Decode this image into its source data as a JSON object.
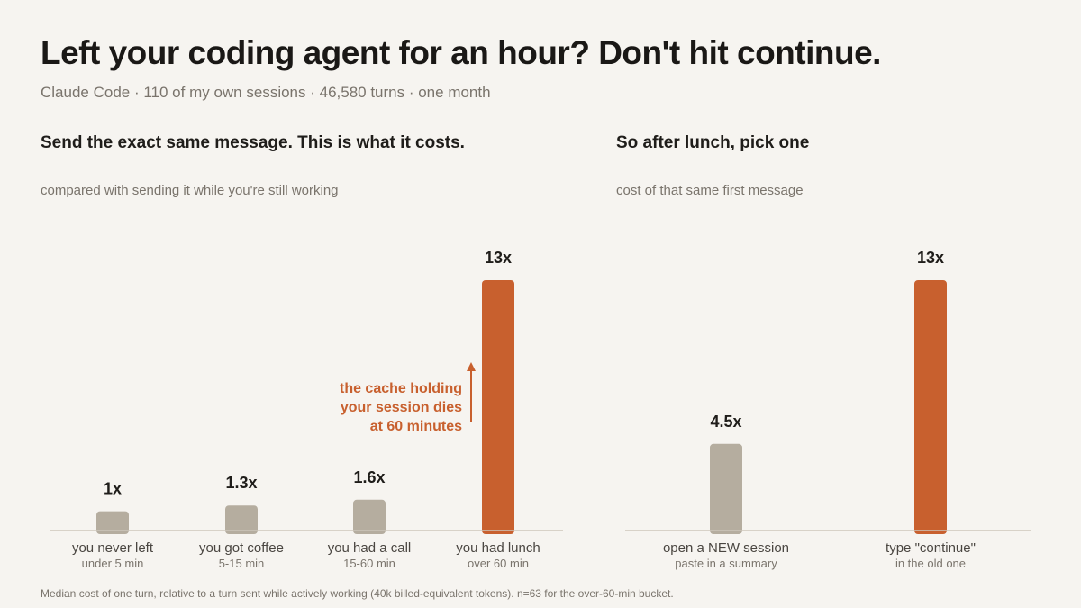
{
  "title": "Left your coding agent for an hour? Don't hit continue.",
  "subtitle": "Claude Code · 110 of my own sessions · 46,580 turns · one month",
  "footnote": "Median cost of one turn, relative to a turn sent while actively working (40k billed-equivalent tokens). n=63 for the over-60-min bucket.",
  "colors": {
    "neutral": "#b5ad9f",
    "accent": "#c8602e",
    "axis": "#cdc6bb",
    "label": "#4a4641",
    "sublabel": "#7a746c"
  },
  "chart_data": [
    {
      "type": "bar",
      "title": "Send the exact same message. This is what it costs.",
      "subtitle": "compared with sending it while you're still working",
      "categories": [
        "you never left",
        "you got coffee",
        "you had a call",
        "you had lunch"
      ],
      "sublabels": [
        "under 5 min",
        "5-15 min",
        "15-60 min",
        "over 60 min"
      ],
      "values": [
        1,
        1.3,
        1.6,
        13
      ],
      "value_labels": [
        "1x",
        "1.3x",
        "1.6x",
        "13x"
      ],
      "highlight": [
        false,
        false,
        false,
        true
      ],
      "ylim": [
        0,
        13
      ],
      "annotation": {
        "lines": [
          "the cache holding",
          "your session dies",
          "at 60 minutes"
        ]
      }
    },
    {
      "type": "bar",
      "title": "So after lunch, pick one",
      "subtitle": "cost of that same first message",
      "categories": [
        "open a NEW session",
        "type \"continue\""
      ],
      "sublabels": [
        "paste in a summary",
        "in the old one"
      ],
      "values": [
        4.5,
        13
      ],
      "value_labels": [
        "4.5x",
        "13x"
      ],
      "highlight": [
        false,
        true
      ],
      "ylim": [
        0,
        13
      ]
    }
  ]
}
